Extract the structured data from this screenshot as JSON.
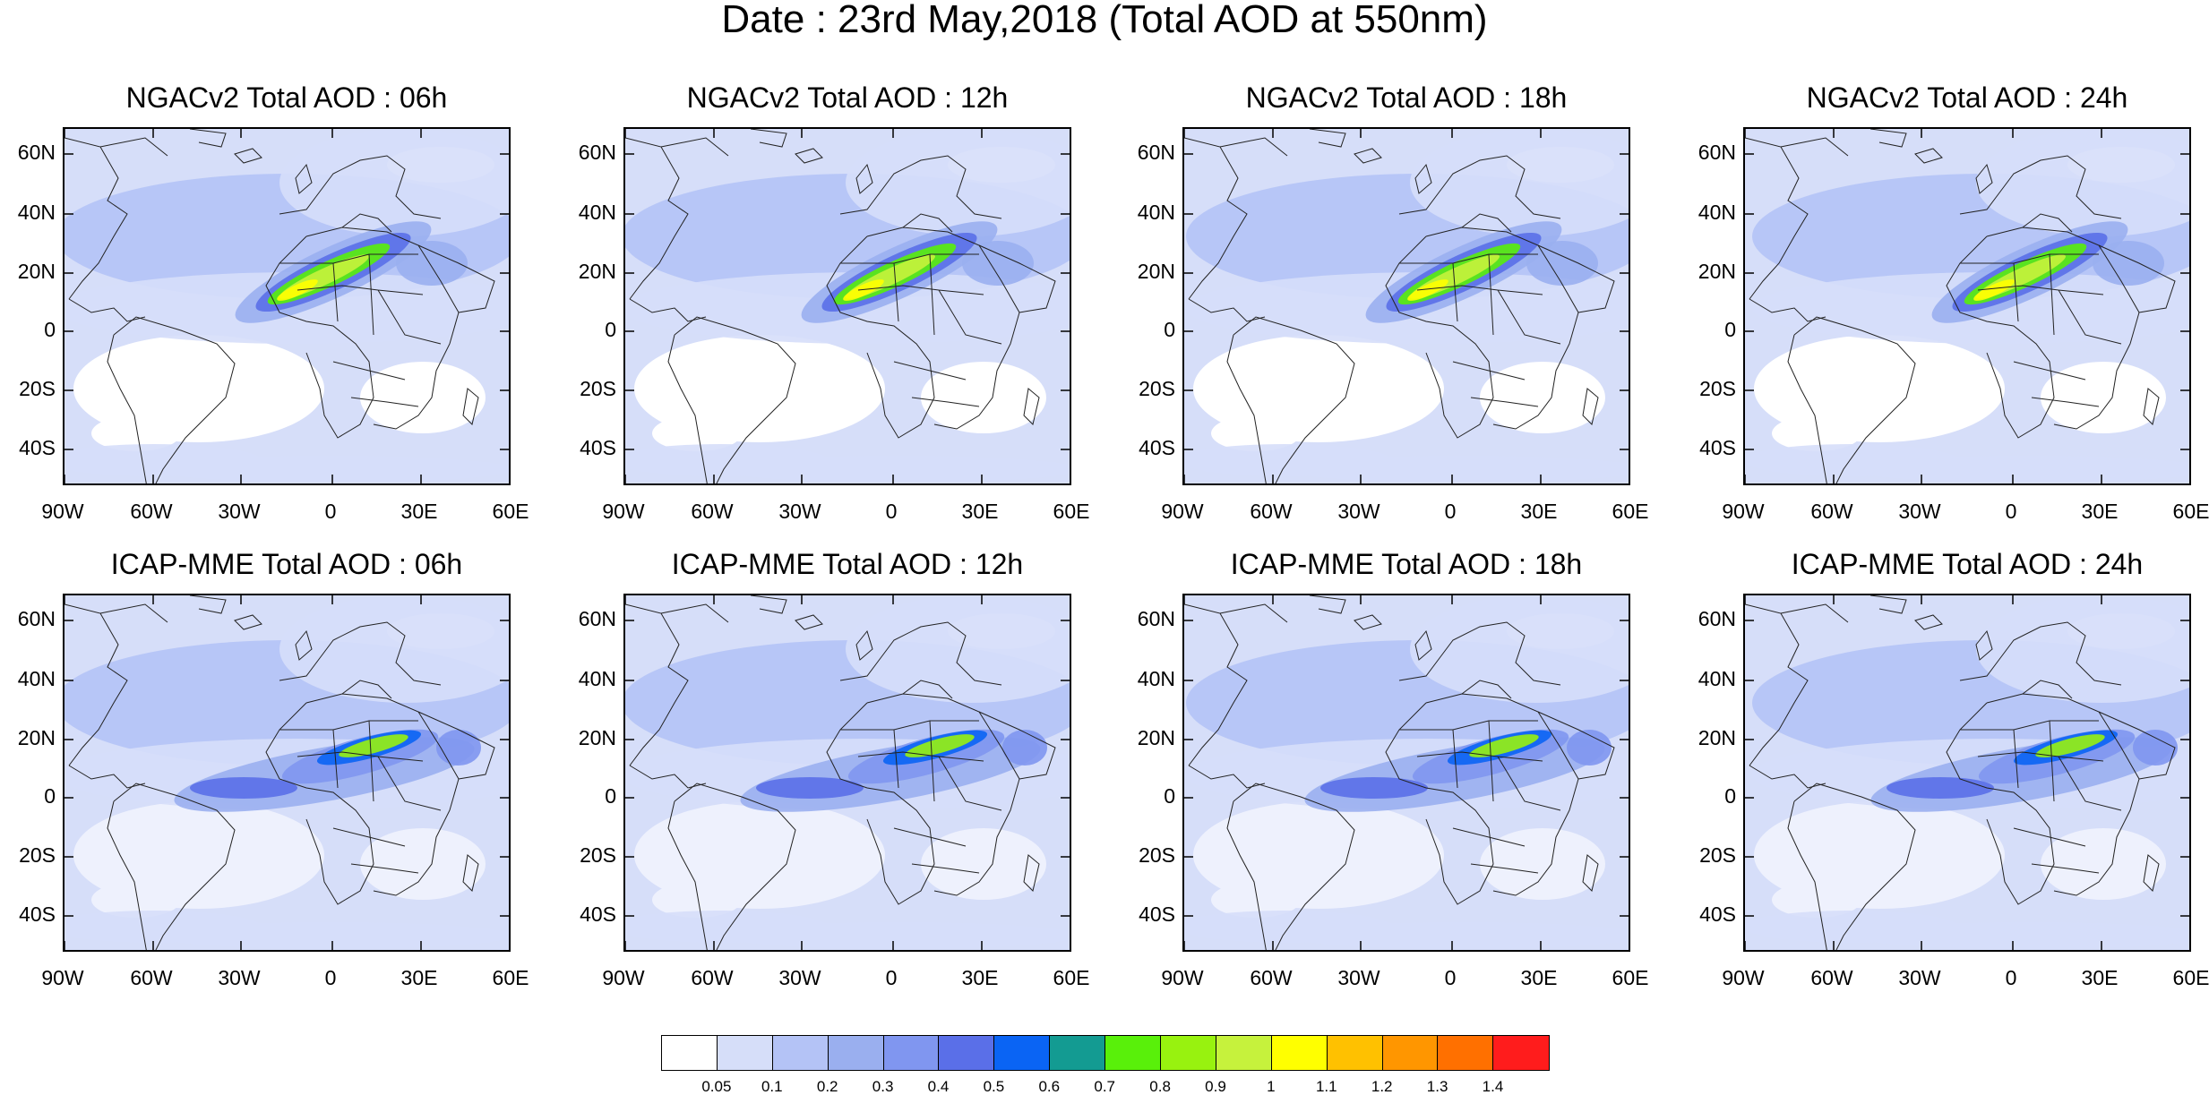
{
  "title": "Date : 23rd May,2018 (Total AOD at 550nm)",
  "panels": [
    {
      "title": "NGACv2 Total AOD : 06h"
    },
    {
      "title": "NGACv2 Total AOD : 12h"
    },
    {
      "title": "NGACv2 Total AOD : 18h"
    },
    {
      "title": "NGACv2 Total AOD : 24h"
    },
    {
      "title": "ICAP-MME Total AOD : 06h"
    },
    {
      "title": "ICAP-MME Total AOD : 12h"
    },
    {
      "title": "ICAP-MME Total AOD : 18h"
    },
    {
      "title": "ICAP-MME Total AOD : 24h"
    }
  ],
  "axes": {
    "lat_ticks": [
      "60N",
      "40N",
      "20N",
      "0",
      "20S",
      "40S"
    ],
    "lon_ticks": [
      "90W",
      "60W",
      "30W",
      "0",
      "30E",
      "60E"
    ]
  },
  "colorbar": {
    "labels": [
      "0.05",
      "0.1",
      "0.2",
      "0.3",
      "0.4",
      "0.5",
      "0.6",
      "0.7",
      "0.8",
      "0.9",
      "1",
      "1.1",
      "1.2",
      "1.3",
      "1.4"
    ],
    "colors": [
      "#ffffff",
      "#d6def9",
      "#b4c3f6",
      "#9aafef",
      "#8096f0",
      "#5a6fe8",
      "#0a64f4",
      "#139b92",
      "#59f00a",
      "#98f20f",
      "#c6f23c",
      "#ffff00",
      "#ffc100",
      "#ff9600",
      "#ff7000",
      "#ff1c1c"
    ]
  }
}
